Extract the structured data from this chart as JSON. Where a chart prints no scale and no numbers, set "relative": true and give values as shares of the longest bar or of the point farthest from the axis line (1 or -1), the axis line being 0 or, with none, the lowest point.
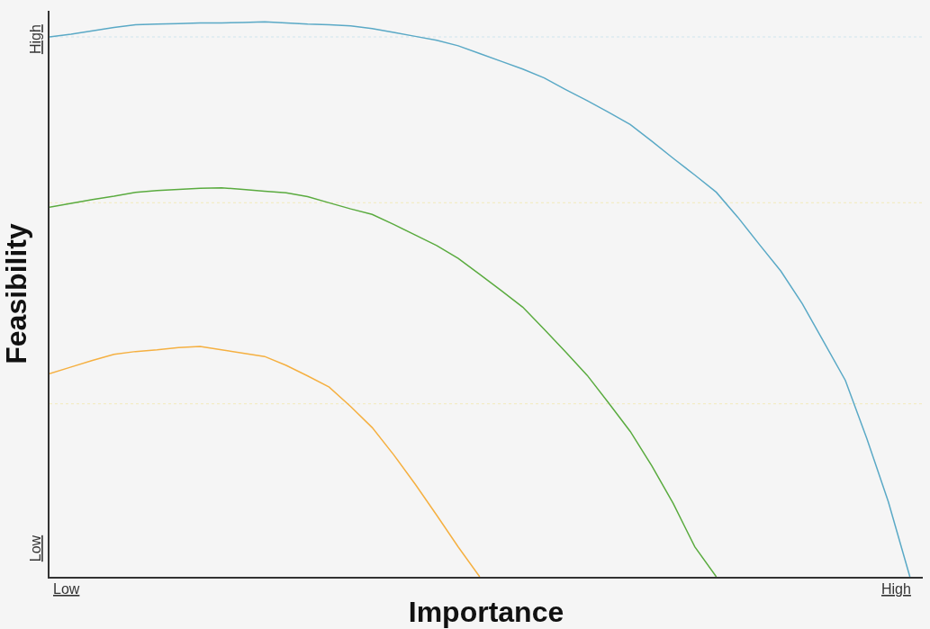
{
  "chart_data": {
    "type": "line",
    "xlabel": "Importance",
    "ylabel": "Feasibility",
    "relative": true,
    "categories": [
      null,
      null,
      null,
      null,
      null,
      null,
      null,
      null,
      null,
      null,
      null,
      null,
      null,
      null,
      null,
      null,
      null,
      null,
      null,
      null,
      null,
      null,
      null,
      null,
      null,
      null,
      null,
      null,
      null,
      null,
      null,
      null,
      null,
      null,
      null,
      null,
      null,
      null,
      null,
      null,
      null
    ],
    "annotations": [
      "Low",
      "High",
      "Low",
      "High"
    ],
    "marker": "none",
    "line_style": "solid",
    "series": [
      {
        "color": "#5aa9c6",
        "values": [
          0.973,
          0.978,
          0.984,
          0.99,
          0.995,
          0.996,
          0.997,
          0.998,
          0.998,
          0.999,
          1,
          0.998,
          0.996,
          0.995,
          0.993,
          0.988,
          0.981,
          0.974,
          0.967,
          0.957,
          0.943,
          0.929,
          0.915,
          0.899,
          0.878,
          0.858,
          0.837,
          0.815,
          0.785,
          0.754,
          0.724,
          0.693,
          0.648,
          0.599,
          0.551,
          0.492,
          0.423,
          0.354,
          0.249,
          0.135,
          0
        ]
      },
      {
        "color": "#5aab3f",
        "values": [
          0.666,
          0.673,
          0.68,
          0.686,
          0.693,
          0.696,
          0.698,
          0.7,
          0.701,
          0.698,
          0.695,
          0.692,
          0.685,
          0.674,
          0.663,
          0.653,
          0.635,
          0.616,
          0.597,
          0.574,
          0.545,
          0.516,
          0.486,
          0.446,
          0.405,
          0.363,
          0.313,
          0.262,
          0.2,
          0.132,
          0.054,
          0,
          null,
          null,
          null,
          null,
          null,
          null,
          null,
          null,
          null
        ]
      },
      {
        "color": "#f5b041",
        "values": [
          0.366,
          0.378,
          0.39,
          0.401,
          0.406,
          0.409,
          0.413,
          0.415,
          0.409,
          0.403,
          0.397,
          0.381,
          0.362,
          0.342,
          0.307,
          0.269,
          0.22,
          0.167,
          0.111,
          0.054,
          0,
          null,
          null,
          null,
          null,
          null,
          null,
          null,
          null,
          null,
          null,
          null,
          null,
          null,
          null,
          null,
          null,
          null,
          null,
          null,
          null
        ]
      }
    ],
    "ref_lines": [
      {
        "axis": "y",
        "value": 0.973,
        "color": "#cfe6ee",
        "line_style": "dotted"
      },
      {
        "axis": "y",
        "value": 0.674,
        "color": "#f3ecc6",
        "line_style": "dotted"
      },
      {
        "axis": "y",
        "value": 0.312,
        "color": "#f3ecc6",
        "line_style": "dotted"
      }
    ]
  }
}
